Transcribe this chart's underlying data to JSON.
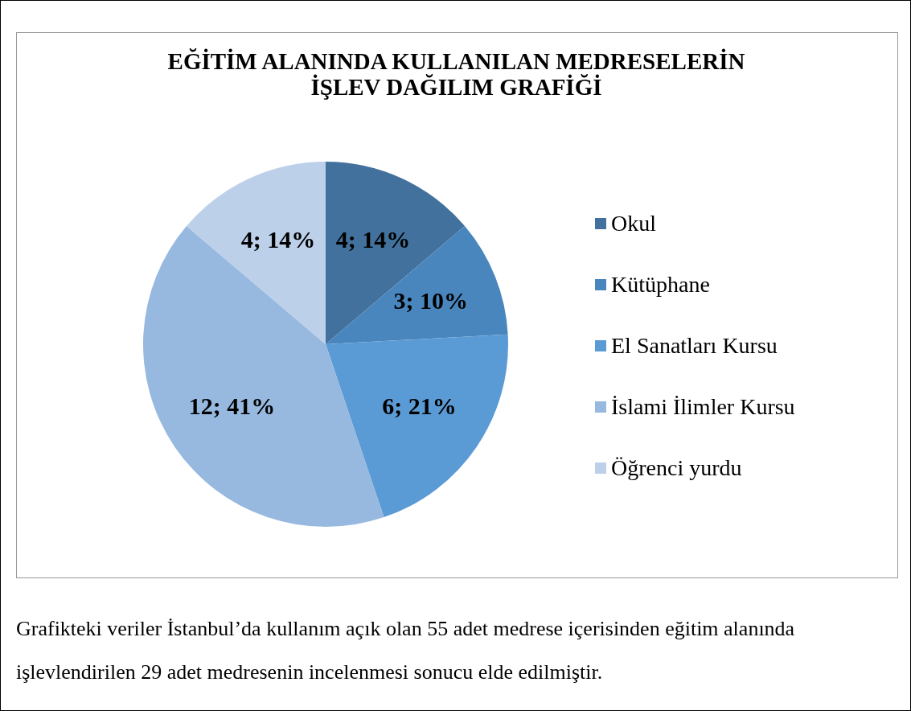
{
  "chart_data": {
    "type": "pie",
    "title": "EĞİTİM ALANINDA KULLANILAN MEDRESELERİN\nİŞLEV DAĞILIM GRAFİĞİ",
    "categories": [
      "Okul",
      "Kütüphane",
      "El Sanatları Kursu",
      "İslami İlimler Kursu",
      "Öğrenci yurdu"
    ],
    "values": [
      4,
      3,
      6,
      12,
      4
    ],
    "colors": [
      "#41719c",
      "#4a86be",
      "#5b9bd5",
      "#97b9e0",
      "#bdd0ea"
    ],
    "value_labels": [
      "4; 14%",
      "3; 10%",
      "6; 21%",
      "12; 41%",
      "4; 14%"
    ],
    "legend": "right",
    "annotations": [
      "Grafikteki veriler İstanbul’da kullanım açık olan 55 adet medrese içerisinden eğitim alanında işlevlendirilen 29 adet medresenin incelenmesi sonucu elde edilmiştir."
    ]
  }
}
